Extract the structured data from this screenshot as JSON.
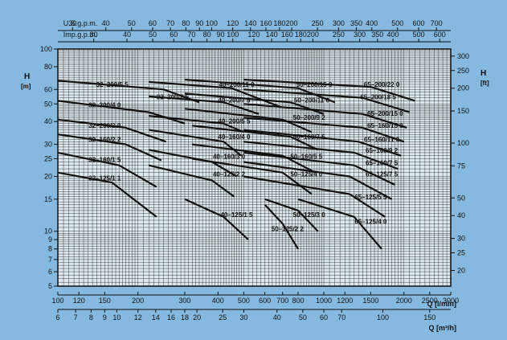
{
  "chart_data": {
    "type": "line",
    "title": "",
    "colors": {
      "background": "#85b9e0",
      "plot": "#dce8ee",
      "ink": "#111111"
    },
    "grid": true,
    "scales": {
      "x": "log",
      "y": "log"
    },
    "xlim": [
      100,
      3000
    ],
    "ylim": [
      5,
      100
    ],
    "axes": {
      "left": {
        "title": "H",
        "unit": "[m]",
        "ticks": [
          5,
          6,
          7,
          8,
          9,
          10,
          15,
          20,
          25,
          30,
          40,
          50,
          60,
          80,
          100
        ]
      },
      "right": {
        "title": "H",
        "unit": "[ft]",
        "ticks": [
          20,
          25,
          30,
          40,
          50,
          75,
          100,
          150,
          200,
          250,
          300
        ]
      },
      "bottom_lmin": {
        "title": "Q  [l/min]",
        "ticks": [
          100,
          120,
          150,
          200,
          300,
          400,
          500,
          600,
          700,
          800,
          1000,
          1200,
          1500,
          2000,
          2500,
          3000
        ]
      },
      "bottom_m3h": {
        "title": "Q  [m³/h]",
        "ticks": [
          6,
          7,
          8,
          9,
          10,
          12,
          14,
          16,
          18,
          20,
          25,
          30,
          40,
          50,
          60,
          70,
          100,
          150
        ]
      },
      "top_usgpm": {
        "title": "U.S.g.p.m.",
        "ticks": [
          30,
          40,
          50,
          60,
          70,
          80,
          90,
          100,
          120,
          140,
          160,
          180,
          200,
          250,
          300,
          350,
          400,
          500,
          600,
          700
        ]
      },
      "top_impgpm": {
        "title": "Imp.g.p.m.",
        "ticks": [
          30,
          40,
          50,
          60,
          70,
          80,
          90,
          100,
          120,
          140,
          160,
          180,
          200,
          250,
          300,
          350,
          400,
          500,
          600
        ]
      }
    },
    "series": [
      {
        "name": "32-200/5.5",
        "x": [
          100,
          250,
          340
        ],
        "y": [
          67,
          60,
          51
        ]
      },
      {
        "name": "32-200/4.0",
        "x": [
          100,
          220,
          300
        ],
        "y": [
          52,
          45,
          39
        ]
      },
      {
        "name": "32-200/3.0",
        "x": [
          100,
          180,
          255
        ],
        "y": [
          41,
          37,
          31
        ]
      },
      {
        "name": "32-160/2.2",
        "x": [
          100,
          180,
          245
        ],
        "y": [
          34,
          30,
          24.5
        ]
      },
      {
        "name": "32-160/1.5",
        "x": [
          100,
          170,
          235
        ],
        "y": [
          27,
          23,
          17.5
        ]
      },
      {
        "name": "32-125/1.1",
        "x": [
          100,
          160,
          235
        ],
        "y": [
          21,
          18.5,
          12
        ]
      },
      {
        "name": "40-200/11.0",
        "x": [
          220,
          450,
          690
        ],
        "y": [
          66,
          61,
          48
        ]
      },
      {
        "name": "40-200/7.5",
        "x": [
          220,
          420,
          570
        ],
        "y": [
          55,
          51,
          44
        ]
      },
      {
        "name": "40-200/5.5",
        "x": [
          220,
          420,
          500
        ],
        "y": [
          43,
          39,
          35
        ]
      },
      {
        "name": "40-160/4.0",
        "x": [
          220,
          420,
          490
        ],
        "y": [
          36,
          31,
          26
        ]
      },
      {
        "name": "40-160/3.0",
        "x": [
          220,
          380,
          470
        ],
        "y": [
          28,
          24,
          20
        ]
      },
      {
        "name": "40-125/2.2",
        "x": [
          220,
          380,
          460
        ],
        "y": [
          23,
          19,
          15.5
        ]
      },
      {
        "name": "40-125/1.5",
        "x": [
          300,
          420,
          520
        ],
        "y": [
          15,
          12,
          9
        ]
      },
      {
        "name": "50-200/15.0",
        "x": [
          300,
          800,
          1100
        ],
        "y": [
          68,
          61,
          51
        ]
      },
      {
        "name": "50-200/11.0",
        "x": [
          300,
          750,
          1000
        ],
        "y": [
          57,
          51,
          44
        ]
      },
      {
        "name": "50-200/9.2",
        "x": [
          300,
          700,
          900
        ],
        "y": [
          47,
          41,
          35
        ]
      },
      {
        "name": "50-160/7.5",
        "x": [
          320,
          750,
          950
        ],
        "y": [
          38,
          33,
          28
        ]
      },
      {
        "name": "50-160/5.5",
        "x": [
          320,
          700,
          930
        ],
        "y": [
          30,
          26,
          21
        ]
      },
      {
        "name": "50-125/4.0",
        "x": [
          320,
          700,
          900
        ],
        "y": [
          25,
          21,
          16
        ]
      },
      {
        "name": "50-125/3.0",
        "x": [
          600,
          800,
          950
        ],
        "y": [
          15,
          13,
          10
        ]
      },
      {
        "name": "50-125/2.2",
        "x": [
          600,
          700,
          800
        ],
        "y": [
          14,
          11,
          8
        ]
      },
      {
        "name": "65-200/22.0",
        "x": [
          500,
          1500,
          2200
        ],
        "y": [
          68,
          62,
          52
        ]
      },
      {
        "name": "65-200/18.5",
        "x": [
          500,
          1400,
          2100
        ],
        "y": [
          60,
          54,
          45
        ]
      },
      {
        "name": "65-200/15.0",
        "x": [
          500,
          1400,
          2050
        ],
        "y": [
          50,
          44,
          37
        ]
      },
      {
        "name": "65-160/15.0",
        "x": [
          500,
          1400,
          2000
        ],
        "y": [
          42,
          37,
          31
        ]
      },
      {
        "name": "65-160/11.0",
        "x": [
          500,
          1350,
          1950
        ],
        "y": [
          36,
          31,
          26
        ]
      },
      {
        "name": "65-160/9.2",
        "x": [
          500,
          1300,
          1900
        ],
        "y": [
          31,
          27,
          22
        ]
      },
      {
        "name": "65-160/7.5",
        "x": [
          500,
          1300,
          1850
        ],
        "y": [
          27,
          23,
          18
        ]
      },
      {
        "name": "65-125/7.5",
        "x": [
          500,
          1250,
          1800
        ],
        "y": [
          24,
          20,
          15
        ]
      },
      {
        "name": "65-125/5.5",
        "x": [
          500,
          1250,
          1700
        ],
        "y": [
          20,
          16,
          12
        ]
      },
      {
        "name": "65-125/4.0",
        "x": [
          800,
          1300,
          1650
        ],
        "y": [
          15,
          12,
          8
        ]
      }
    ],
    "labels": [
      {
        "text": "32–200/5 5",
        "x": 160,
        "y": 62
      },
      {
        "text": "32–200/4 0",
        "x": 150,
        "y": 48
      },
      {
        "text": "32–200/3 0",
        "x": 150,
        "y": 37
      },
      {
        "text": "32–160/2 2",
        "x": 150,
        "y": 31
      },
      {
        "text": "32–160/1 5",
        "x": 150,
        "y": 24
      },
      {
        "text": "32–125/1 1",
        "x": 150,
        "y": 19
      },
      {
        "text": "32–200/7 5",
        "x": 270,
        "y": 53
      },
      {
        "text": "40–200/11 0",
        "x": 470,
        "y": 62
      },
      {
        "text": "40–200/7 5",
        "x": 460,
        "y": 51
      },
      {
        "text": "40–200/5 5",
        "x": 460,
        "y": 39
      },
      {
        "text": "40–160/4 0",
        "x": 460,
        "y": 32
      },
      {
        "text": "40–160/3 0",
        "x": 440,
        "y": 25
      },
      {
        "text": "40–125/2 2",
        "x": 440,
        "y": 20
      },
      {
        "text": "40–125/1 5",
        "x": 470,
        "y": 12
      },
      {
        "text": "50–200/15 0",
        "x": 920,
        "y": 62
      },
      {
        "text": "50–200/11 0",
        "x": 900,
        "y": 51
      },
      {
        "text": "50–200/9 2",
        "x": 880,
        "y": 41
      },
      {
        "text": "50–160/7 5",
        "x": 880,
        "y": 32
      },
      {
        "text": "50–160/5 5",
        "x": 860,
        "y": 25
      },
      {
        "text": "50–125/4 0",
        "x": 860,
        "y": 20
      },
      {
        "text": "50–125/3 0",
        "x": 880,
        "y": 12
      },
      {
        "text": "50–125/2 2",
        "x": 730,
        "y": 10
      },
      {
        "text": "65–200/22 0",
        "x": 1650,
        "y": 62
      },
      {
        "text": "65–200/18 5",
        "x": 1600,
        "y": 53
      },
      {
        "text": "65–200/15 0",
        "x": 1700,
        "y": 43
      },
      {
        "text": "65–160/15 0",
        "x": 1700,
        "y": 37
      },
      {
        "text": "65–160/11 0",
        "x": 1650,
        "y": 31
      },
      {
        "text": "65–160/9 2",
        "x": 1650,
        "y": 27
      },
      {
        "text": "65–160/7 5",
        "x": 1650,
        "y": 23
      },
      {
        "text": "65–125/7 5",
        "x": 1650,
        "y": 20
      },
      {
        "text": "65–125/5 5",
        "x": 1500,
        "y": 15
      },
      {
        "text": "65–125/4 0",
        "x": 1500,
        "y": 11
      }
    ]
  }
}
